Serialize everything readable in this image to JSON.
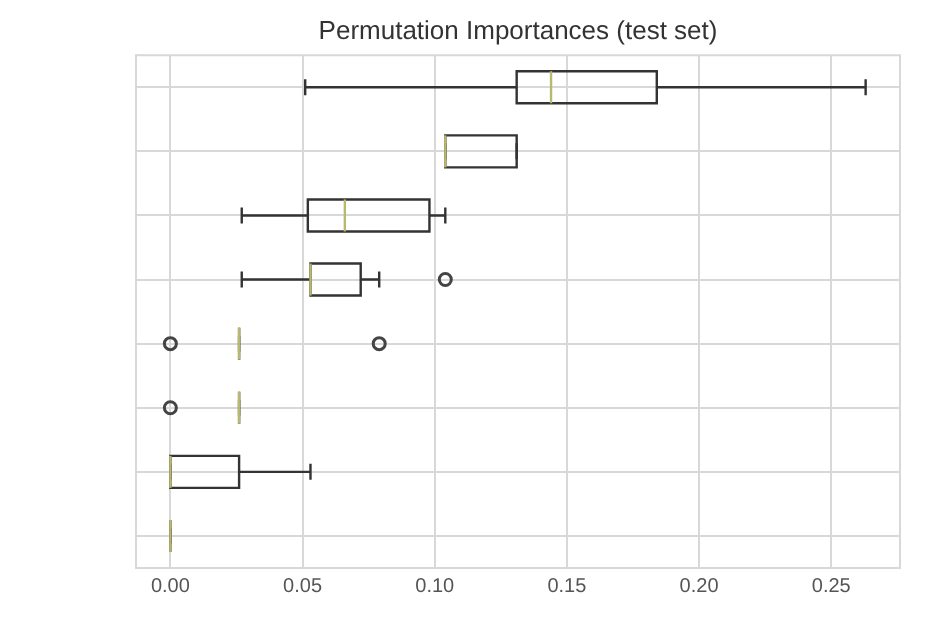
{
  "chart_data": {
    "type": "box",
    "title": "Permutation Importances (test set)",
    "orientation": "horizontal",
    "categories": [
      null,
      null,
      null,
      null,
      null,
      null,
      null,
      null
    ],
    "boxes": [
      {
        "low": 0.051,
        "q1": 0.131,
        "median": 0.144,
        "q3": 0.184,
        "high": 0.263
      },
      {
        "low": 0.104,
        "q1": 0.104,
        "median": 0.104,
        "q3": 0.131,
        "high": 0.131
      },
      {
        "low": 0.027,
        "q1": 0.052,
        "median": 0.066,
        "q3": 0.098,
        "high": 0.104
      },
      {
        "low": 0.027,
        "q1": 0.053,
        "median": 0.053,
        "q3": 0.072,
        "high": 0.079,
        "outliers": [
          0.104
        ]
      },
      {
        "low": 0.026,
        "q1": 0.026,
        "median": 0.026,
        "q3": 0.026,
        "high": 0.026,
        "outliers": [
          0,
          0.079
        ]
      },
      {
        "low": 0.026,
        "q1": 0.026,
        "median": 0.026,
        "q3": 0.026,
        "high": 0.026,
        "outliers": [
          0
        ]
      },
      {
        "low": 0,
        "q1": 0,
        "median": 0,
        "q3": 0.026,
        "high": 0.053
      },
      {
        "low": 0,
        "q1": 0,
        "median": 0,
        "q3": 0,
        "high": 0
      }
    ],
    "xlim": [
      -0.013,
      0.276
    ],
    "xticks": [
      {
        "value": 0,
        "label": "0.00"
      },
      {
        "value": 0.05,
        "label": "0.05"
      },
      {
        "value": 0.1,
        "label": "0.10"
      },
      {
        "value": 0.15,
        "label": "0.15"
      },
      {
        "value": 0.2,
        "label": "0.20"
      },
      {
        "value": 0.25,
        "label": "0.25"
      }
    ],
    "grid": true,
    "tick_labels": "x"
  }
}
